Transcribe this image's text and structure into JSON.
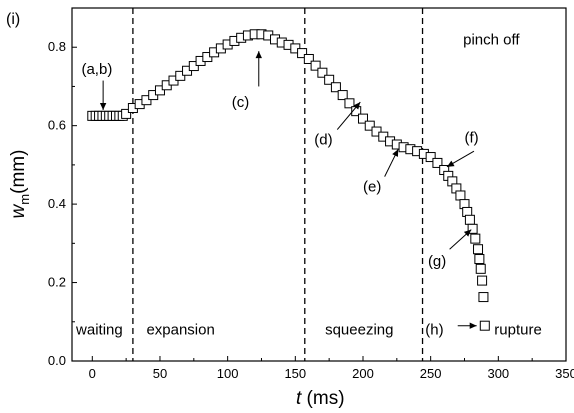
{
  "chart_data": {
    "type": "scatter",
    "panel_label": "(i)",
    "xlabel": {
      "var": "t",
      "unit": " (ms)"
    },
    "ylabel": {
      "var": "w",
      "sub": "m",
      "unit": "(mm)"
    },
    "xlim": [
      -15,
      350
    ],
    "ylim": [
      0.0,
      0.9
    ],
    "x_ticks": [
      0,
      50,
      100,
      150,
      200,
      250,
      300,
      350
    ],
    "y_ticks": [
      0.0,
      0.2,
      0.4,
      0.6,
      0.8
    ],
    "y_tick_labels": [
      "0.0",
      "0.2",
      "0.4",
      "0.6",
      "0.8"
    ],
    "grid": false,
    "marker": "open-square",
    "series": [
      {
        "x": [
          0,
          2.5,
          5,
          7.5,
          10,
          12.5,
          15,
          17.5,
          20,
          22.5,
          25,
          30,
          35,
          40,
          45,
          50,
          55,
          60,
          65,
          70,
          75,
          80,
          85,
          90,
          95,
          100,
          105,
          110,
          115,
          120,
          125,
          130,
          135,
          140,
          145,
          150,
          155,
          160,
          165,
          170,
          175,
          180,
          185,
          190,
          195,
          200,
          205,
          210,
          215,
          220,
          225,
          230,
          235,
          240,
          245,
          250,
          255,
          260,
          263,
          266,
          269,
          272,
          275,
          277,
          279,
          281,
          283,
          285,
          286,
          287,
          288,
          289
        ],
        "y": [
          0.625,
          0.625,
          0.625,
          0.625,
          0.625,
          0.625,
          0.625,
          0.625,
          0.625,
          0.625,
          0.63,
          0.645,
          0.655,
          0.665,
          0.678,
          0.69,
          0.703,
          0.715,
          0.727,
          0.74,
          0.752,
          0.765,
          0.775,
          0.787,
          0.797,
          0.807,
          0.816,
          0.824,
          0.83,
          0.833,
          0.833,
          0.83,
          0.82,
          0.812,
          0.806,
          0.797,
          0.785,
          0.77,
          0.753,
          0.735,
          0.717,
          0.698,
          0.678,
          0.657,
          0.637,
          0.618,
          0.6,
          0.585,
          0.572,
          0.56,
          0.552,
          0.545,
          0.54,
          0.535,
          0.528,
          0.52,
          0.505,
          0.487,
          0.472,
          0.458,
          0.44,
          0.422,
          0.4,
          0.38,
          0.36,
          0.337,
          0.312,
          0.285,
          0.26,
          0.235,
          0.205,
          0.163
        ]
      }
    ],
    "extra_points": [
      {
        "x": 290,
        "y": 0.09
      }
    ],
    "phase_boundaries": [
      30,
      157,
      244
    ],
    "phase_labels": [
      {
        "text": "waiting",
        "x": -12,
        "y": 0.08
      },
      {
        "text": "expansion",
        "x": 40,
        "y": 0.08
      },
      {
        "text": "squeezing",
        "x": 172,
        "y": 0.08
      },
      {
        "text": "pinch off",
        "x": 274,
        "y": 0.82
      },
      {
        "text": "rupture",
        "x": 297,
        "y": 0.08
      }
    ],
    "annotations": [
      {
        "text": "(a,b)",
        "x": -8,
        "y": 0.745,
        "ax": 8,
        "ay": 0.715,
        "bx": 8,
        "by": 0.64
      },
      {
        "text": "(c)",
        "x": 103,
        "y": 0.66,
        "ax": 123,
        "ay": 0.7,
        "bx": 123,
        "by": 0.79
      },
      {
        "text": "(d)",
        "x": 164,
        "y": 0.565,
        "ax": 181,
        "ay": 0.59,
        "bx": 198,
        "by": 0.66
      },
      {
        "text": "(e)",
        "x": 200,
        "y": 0.445,
        "ax": 216,
        "ay": 0.47,
        "bx": 226,
        "by": 0.54
      },
      {
        "text": "(f)",
        "x": 275,
        "y": 0.57,
        "ax": 282,
        "ay": 0.535,
        "bx": 262,
        "by": 0.495
      },
      {
        "text": "(g)",
        "x": 248,
        "y": 0.255,
        "ax": 264,
        "ay": 0.285,
        "bx": 280,
        "by": 0.335
      },
      {
        "text": "(h)",
        "x": 246,
        "y": 0.08,
        "ax": 270,
        "ay": 0.09,
        "bx": 284,
        "by": 0.09
      }
    ]
  }
}
